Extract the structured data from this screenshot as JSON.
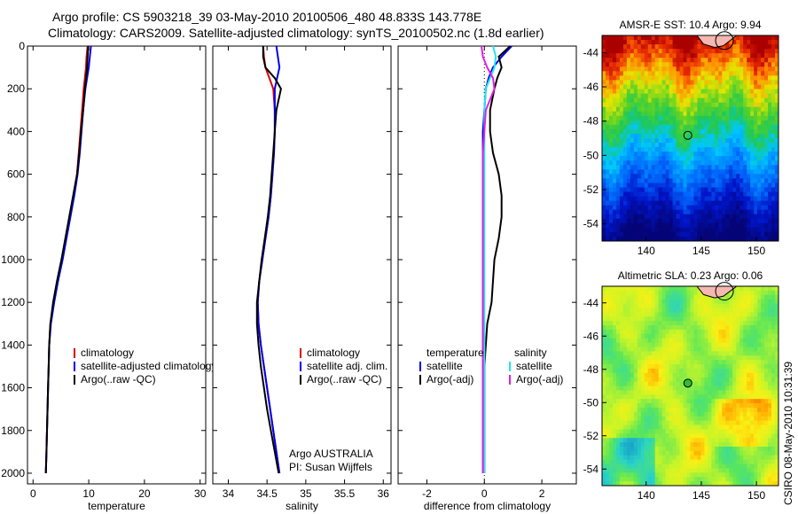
{
  "header": {
    "line1": "Argo profile: CS 5903218_39 03-May-2010 20100506_480 48.833S 143.778E",
    "line2": "Climatology: CARS2009. Satellite-adjusted climatology: synTS_20100502.nc (1.8d earlier)"
  },
  "colors": {
    "red": "#dd0000",
    "blue": "#0000ee",
    "black": "#000000",
    "cyan": "#22e6f0",
    "magenta": "#e020e0"
  },
  "chart_data": [
    {
      "type": "line",
      "name": "temperature",
      "xlabel": "temperature",
      "ylabel": "",
      "xlim": [
        -1,
        31
      ],
      "ylim": [
        2050,
        0
      ],
      "xticks": [
        "0",
        "10",
        "20",
        "30"
      ],
      "yticks": [
        "0",
        "200",
        "400",
        "600",
        "800",
        "1000",
        "1200",
        "1400",
        "1600",
        "1800",
        "2000"
      ],
      "depth": [
        0,
        50,
        100,
        150,
        200,
        300,
        400,
        500,
        600,
        700,
        800,
        900,
        1000,
        1100,
        1200,
        1300,
        1400,
        1500,
        1600,
        1700,
        1800,
        1900,
        2000
      ],
      "series": [
        {
          "name": "climatology",
          "color": "red",
          "values": [
            9.8,
            9.6,
            9.5,
            9.3,
            9.1,
            8.8,
            8.5,
            8.2,
            7.9,
            7.3,
            6.6,
            5.9,
            5.2,
            4.4,
            3.7,
            3.1,
            2.9,
            2.8,
            2.7,
            2.6,
            2.5,
            2.4,
            2.3
          ]
        },
        {
          "name": "satellite-adjusted climatology",
          "color": "blue",
          "values": [
            10.4,
            10.2,
            10.0,
            9.7,
            9.4,
            9.0,
            8.7,
            8.4,
            8.0,
            7.4,
            6.7,
            6.0,
            5.3,
            4.5,
            3.8,
            3.2,
            2.9,
            2.8,
            2.7,
            2.6,
            2.5,
            2.4,
            2.3
          ]
        },
        {
          "name": "Argo(..raw -QC)",
          "color": "black",
          "values": [
            9.9,
            9.8,
            9.7,
            9.5,
            9.3,
            9.0,
            8.6,
            8.3,
            7.9,
            7.2,
            6.5,
            5.8,
            5.1,
            4.3,
            3.6,
            3.1,
            2.9,
            2.8,
            2.7,
            2.6,
            2.5,
            2.4,
            2.3
          ]
        }
      ],
      "legend": [
        "climatology",
        "satellite-adjusted climatology",
        "Argo(..raw -QC)"
      ],
      "legend_colors": [
        "red",
        "blue",
        "black"
      ]
    },
    {
      "type": "line",
      "name": "salinity",
      "xlabel": "salinity",
      "ylabel": "",
      "xlim": [
        33.8,
        36.1
      ],
      "ylim": [
        2050,
        0
      ],
      "xticks": [
        "34",
        "34.5",
        "35",
        "35.5",
        "36"
      ],
      "depth": [
        0,
        50,
        100,
        150,
        200,
        300,
        400,
        500,
        600,
        700,
        800,
        900,
        1000,
        1100,
        1200,
        1300,
        1400,
        1500,
        1600,
        1700,
        1800,
        1900,
        2000
      ],
      "series": [
        {
          "name": "climatology",
          "color": "red",
          "values": [
            34.45,
            34.46,
            34.48,
            34.53,
            34.58,
            34.6,
            34.6,
            34.59,
            34.57,
            34.55,
            34.52,
            34.48,
            34.44,
            34.4,
            34.38,
            34.39,
            34.42,
            34.46,
            34.5,
            34.54,
            34.58,
            34.62,
            34.66
          ]
        },
        {
          "name": "satellite adj. clim.",
          "color": "blue",
          "values": [
            34.62,
            34.64,
            34.66,
            34.63,
            34.6,
            34.6,
            34.6,
            34.59,
            34.57,
            34.55,
            34.52,
            34.48,
            34.44,
            34.4,
            34.38,
            34.39,
            34.42,
            34.46,
            34.5,
            34.54,
            34.58,
            34.62,
            34.66
          ]
        },
        {
          "name": "Argo(..raw -QC)",
          "color": "black",
          "values": [
            34.45,
            34.45,
            34.48,
            34.6,
            34.68,
            34.62,
            34.6,
            34.58,
            34.56,
            34.54,
            34.51,
            34.47,
            34.43,
            34.4,
            34.37,
            34.37,
            34.39,
            34.42,
            34.46,
            34.5,
            34.55,
            34.6,
            34.65
          ]
        }
      ],
      "legend": [
        "climatology",
        "satellite adj. clim.",
        "Argo(..raw -QC)"
      ],
      "legend_colors": [
        "red",
        "blue",
        "black"
      ],
      "annotation": [
        "Argo AUSTRALIA",
        "PI: Susan Wijffels"
      ]
    },
    {
      "type": "line",
      "name": "difference",
      "xlabel": "difference from climatology",
      "ylabel": "",
      "xlim": [
        -3.0,
        3.2
      ],
      "ylim": [
        2050,
        0
      ],
      "xticks": [
        "-2",
        "0",
        "2"
      ],
      "depth": [
        0,
        50,
        100,
        150,
        200,
        300,
        400,
        500,
        600,
        700,
        800,
        900,
        1000,
        1100,
        1200,
        1300,
        1400,
        1500,
        1600,
        1700,
        1800,
        1900,
        2000
      ],
      "series": [
        {
          "name": "temperature satellite",
          "color": "blue",
          "values": [
            0.95,
            0.6,
            0.3,
            0.15,
            0.05,
            0.0,
            -0.05,
            -0.05,
            -0.05,
            -0.05,
            -0.05,
            -0.05,
            -0.05,
            -0.05,
            -0.05,
            -0.05,
            -0.05,
            -0.05,
            -0.05,
            -0.05,
            -0.05,
            -0.05,
            -0.05
          ]
        },
        {
          "name": "temperature Argo(-adj)",
          "color": "black",
          "values": [
            0.9,
            0.5,
            0.6,
            0.45,
            0.35,
            0.2,
            0.2,
            0.3,
            0.5,
            0.6,
            0.6,
            0.5,
            0.35,
            0.3,
            0.25,
            0.1,
            0.05,
            0.0,
            0.0,
            0.0,
            0.0,
            0.0,
            0.0
          ]
        },
        {
          "name": "salinity satellite",
          "color": "cyan",
          "values": [
            0.3,
            0.4,
            0.35,
            0.2,
            0.05,
            0.0,
            0.0,
            0.0,
            0.0,
            0.0,
            0.0,
            0.0,
            0.0,
            0.0,
            0.0,
            0.0,
            0.0,
            0.0,
            0.0,
            0.0,
            0.0,
            0.0,
            0.0
          ]
        },
        {
          "name": "salinity Argo(-adj)",
          "color": "magenta",
          "values": [
            -0.1,
            -0.05,
            0.1,
            0.3,
            0.35,
            0.05,
            0.0,
            -0.05,
            -0.05,
            -0.05,
            -0.05,
            -0.05,
            -0.05,
            -0.05,
            -0.05,
            -0.05,
            -0.05,
            -0.05,
            -0.05,
            -0.05,
            -0.05,
            -0.05,
            -0.05
          ]
        }
      ],
      "legend_temperature_title": "temperature",
      "legend_salinity_title": "salinity",
      "legend_temperature": [
        "satellite",
        "Argo(-adj)"
      ],
      "legend_salinity": [
        "satellite",
        "Argo(-adj)"
      ],
      "legend_temperature_colors": [
        "blue",
        "black"
      ],
      "legend_salinity_colors": [
        "cyan",
        "magenta"
      ]
    },
    {
      "type": "heatmap",
      "name": "sst-map",
      "title": "AMSR-E SST: 10.4  Argo: 9.94",
      "xlim": [
        136,
        152
      ],
      "ylim": [
        -55,
        -43
      ],
      "xticks": [
        "140",
        "145",
        "150"
      ],
      "yticks": [
        "-44",
        "-46",
        "-48",
        "-50",
        "-52",
        "-54"
      ],
      "profile_location": {
        "lon": 143.78,
        "lat": -48.83
      }
    },
    {
      "type": "heatmap",
      "name": "sla-map",
      "title": "Altimetric SLA: 0.23  Argo: 0.06",
      "xlim": [
        136,
        152
      ],
      "ylim": [
        -55,
        -43
      ],
      "xticks": [
        "140",
        "145",
        "150"
      ],
      "yticks": [
        "-44",
        "-46",
        "-48",
        "-50",
        "-52",
        "-54"
      ],
      "profile_location": {
        "lon": 143.78,
        "lat": -48.83
      }
    }
  ],
  "footer_stamp": "CSIRO 08-May-2010 10:31:39"
}
